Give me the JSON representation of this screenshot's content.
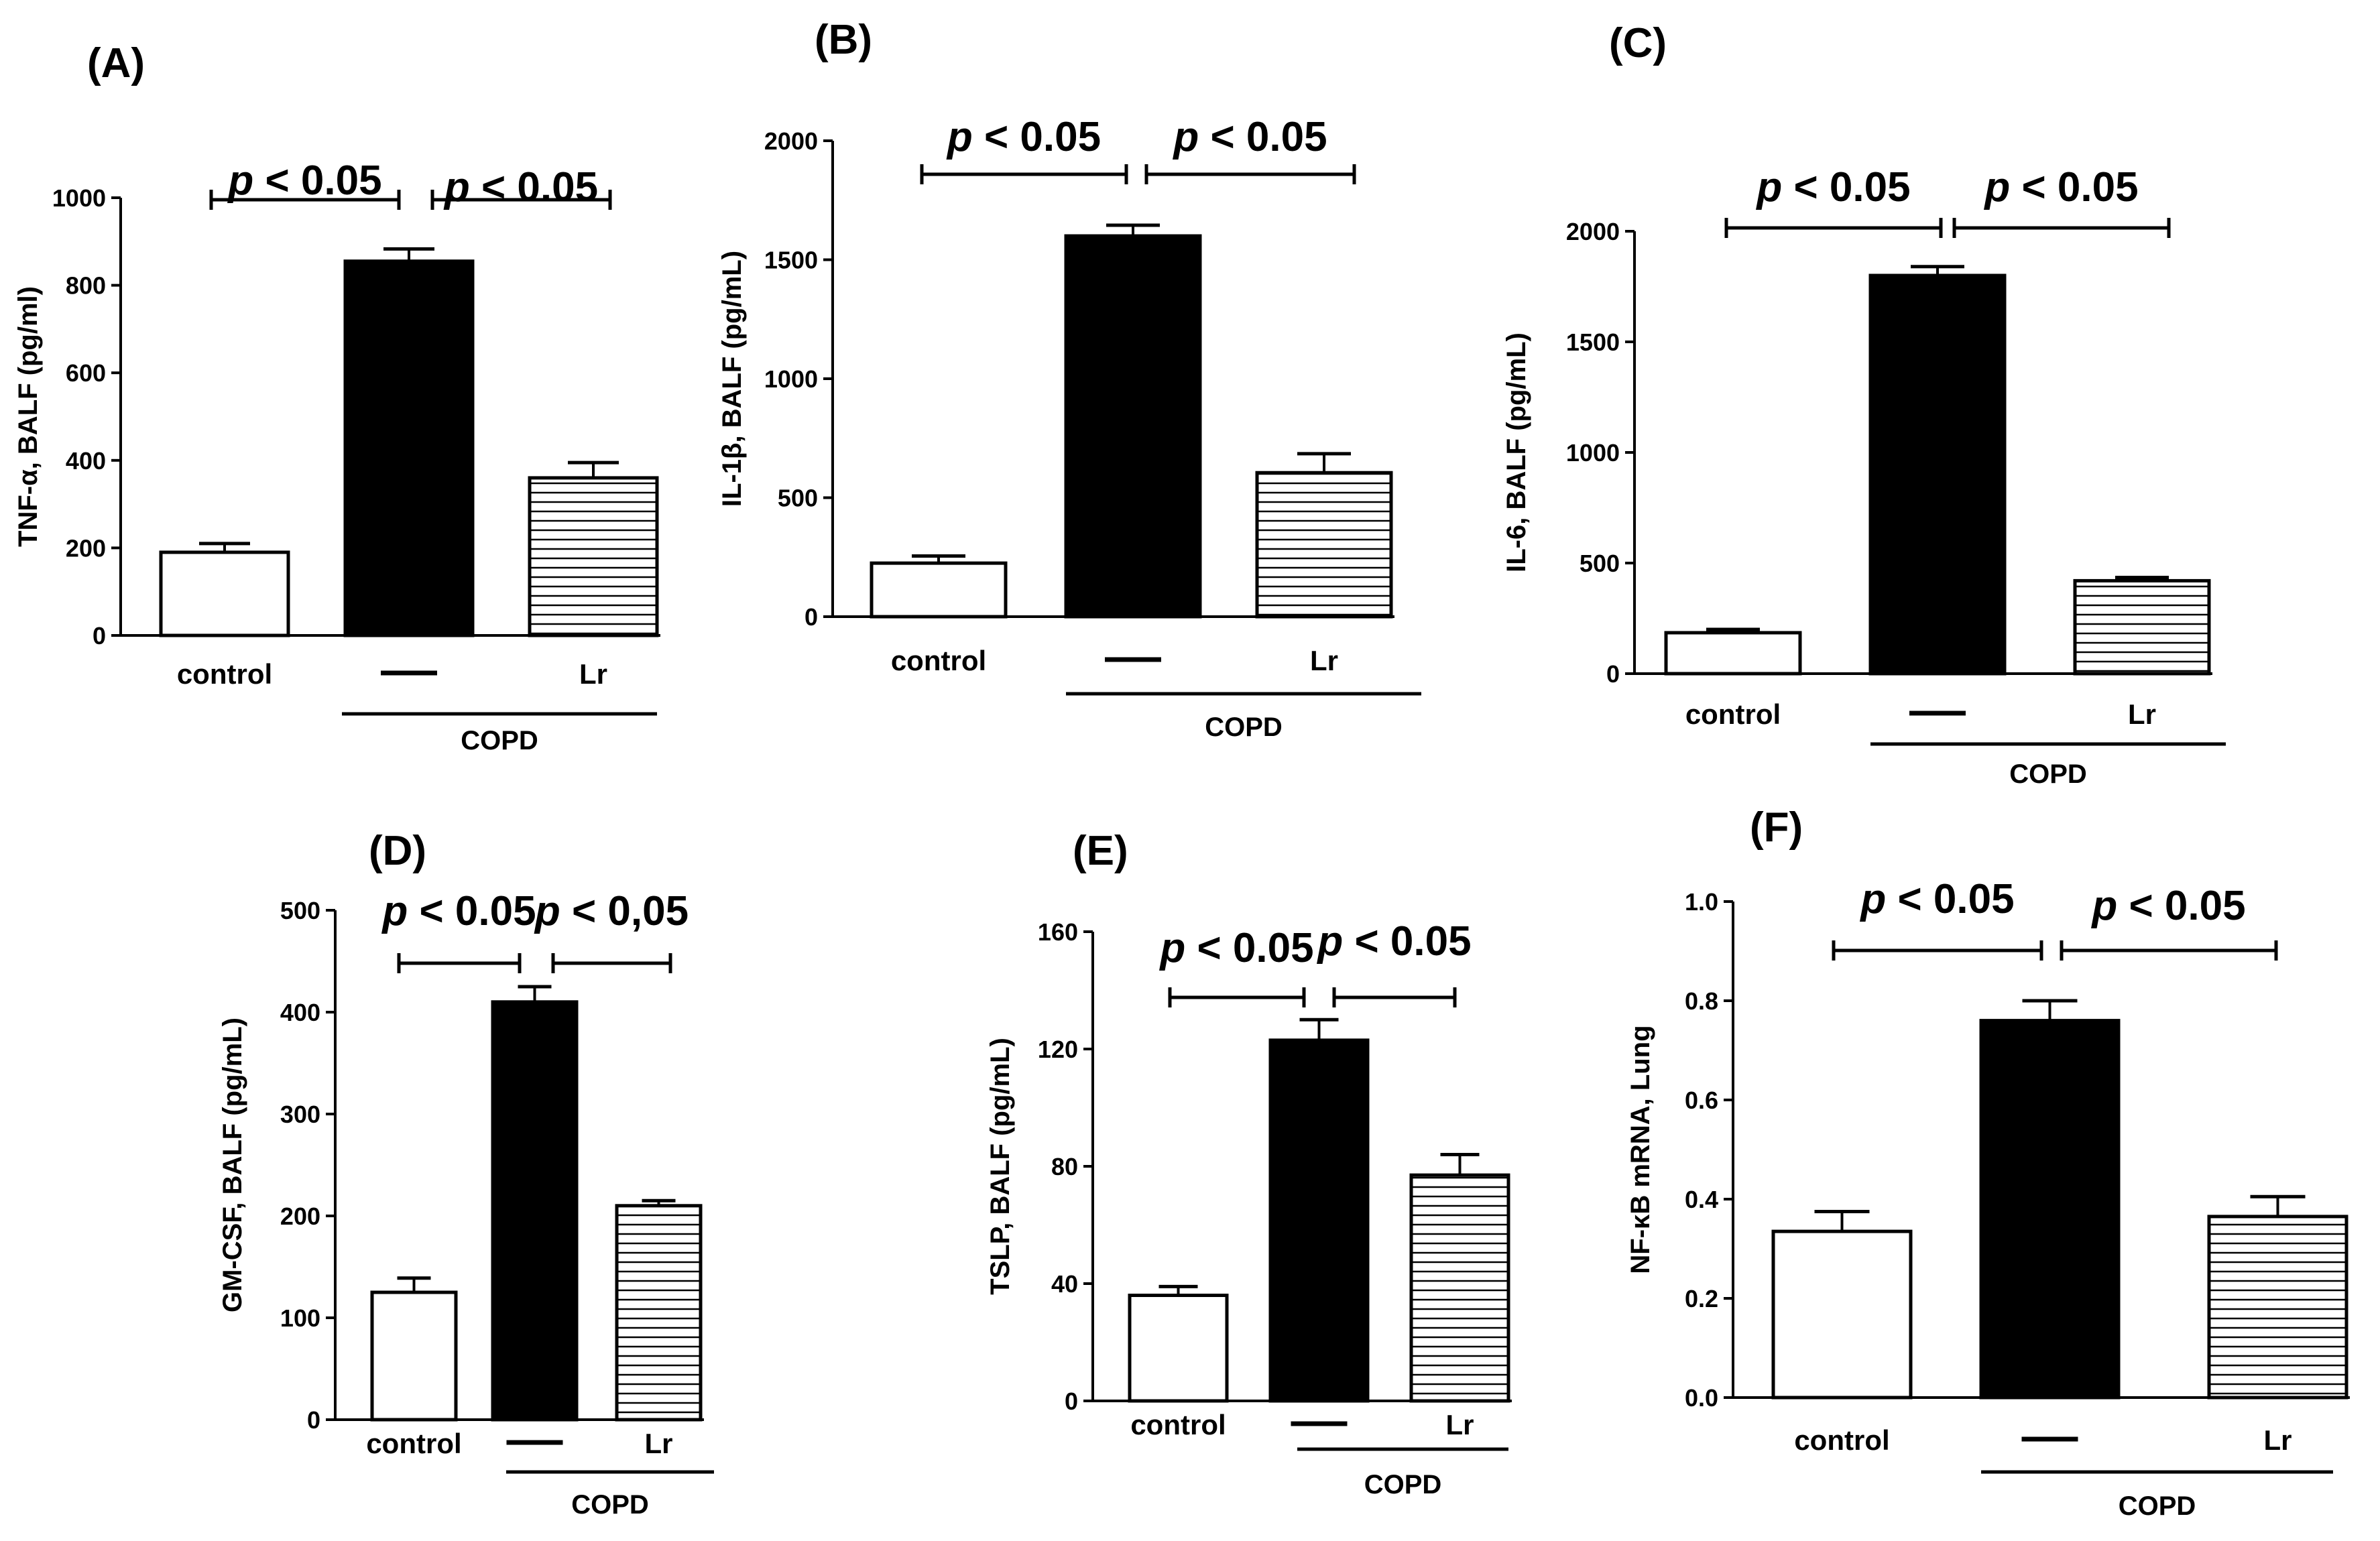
{
  "chart_data": [
    {
      "type": "bar",
      "panel": "(A)",
      "categories": [
        "control",
        "—",
        "Lr"
      ],
      "values": [
        190,
        855,
        360
      ],
      "errors": [
        20,
        28,
        35
      ],
      "ylabel": "TNF-α, BALF (pg/ml)",
      "ylim": [
        0,
        1000
      ],
      "yticks": [
        "0",
        "200",
        "400",
        "600",
        "800",
        "1000"
      ],
      "group_label": "COPD",
      "significance": [
        "p < 0.05",
        "p < 0.05"
      ],
      "fills": [
        "white",
        "black",
        "hatched"
      ]
    },
    {
      "type": "bar",
      "panel": "(B)",
      "categories": [
        "control",
        "—",
        "Lr"
      ],
      "values": [
        225,
        1600,
        605
      ],
      "errors": [
        30,
        45,
        80
      ],
      "ylabel": "IL-1β, BALF (pg/mL)",
      "ylim": [
        0,
        2000
      ],
      "yticks": [
        "0",
        "500",
        "1000",
        "1500",
        "2000"
      ],
      "group_label": "COPD",
      "significance": [
        "p < 0.05",
        "p < 0.05"
      ],
      "fills": [
        "white",
        "black",
        "hatched"
      ]
    },
    {
      "type": "bar",
      "panel": "(C)",
      "categories": [
        "control",
        "—",
        "Lr"
      ],
      "values": [
        185,
        1800,
        420
      ],
      "errors": [
        15,
        40,
        15
      ],
      "ylabel": "IL-6, BALF (pg/mL)",
      "ylim": [
        0,
        2000
      ],
      "yticks": [
        "0",
        "500",
        "1000",
        "1500",
        "2000"
      ],
      "group_label": "COPD",
      "significance": [
        "p < 0.05",
        "p < 0.05"
      ],
      "fills": [
        "white",
        "black",
        "hatched"
      ]
    },
    {
      "type": "bar",
      "panel": "(D)",
      "categories": [
        "control",
        "—",
        "Lr"
      ],
      "values": [
        125,
        410,
        210
      ],
      "errors": [
        14,
        15,
        5
      ],
      "ylabel": "GM-CSF, BALF (pg/mL)",
      "ylim": [
        0,
        500
      ],
      "yticks": [
        "0",
        "100",
        "200",
        "300",
        "400",
        "500"
      ],
      "group_label": "COPD",
      "significance": [
        "p < 0.05",
        "p < 0,05"
      ],
      "fills": [
        "white",
        "black",
        "hatched"
      ]
    },
    {
      "type": "bar",
      "panel": "(E)",
      "categories": [
        "control",
        "—",
        "Lr"
      ],
      "values": [
        36,
        123,
        77
      ],
      "errors": [
        3,
        7,
        7
      ],
      "ylabel": "TSLP, BALF (pg/mL)",
      "ylim": [
        0,
        160
      ],
      "yticks": [
        "0",
        "40",
        "80",
        "120",
        "160"
      ],
      "group_label": "COPD",
      "significance": [
        "p < 0.05",
        "p < 0.05"
      ],
      "fills": [
        "white",
        "black",
        "hatched"
      ]
    },
    {
      "type": "bar",
      "panel": "(F)",
      "categories": [
        "control",
        "—",
        "Lr"
      ],
      "values": [
        0.335,
        0.76,
        0.365
      ],
      "errors": [
        0.04,
        0.04,
        0.04
      ],
      "ylabel": "NF-κB mRNA, Lung",
      "ylim": [
        0,
        1.0
      ],
      "yticks": [
        "0.0",
        "0.2",
        "0.4",
        "0.6",
        "0.8",
        "1.0"
      ],
      "group_label": "COPD",
      "significance": [
        "p < 0.05",
        "p < 0.05"
      ],
      "fills": [
        "white",
        "black",
        "hatched"
      ]
    }
  ]
}
